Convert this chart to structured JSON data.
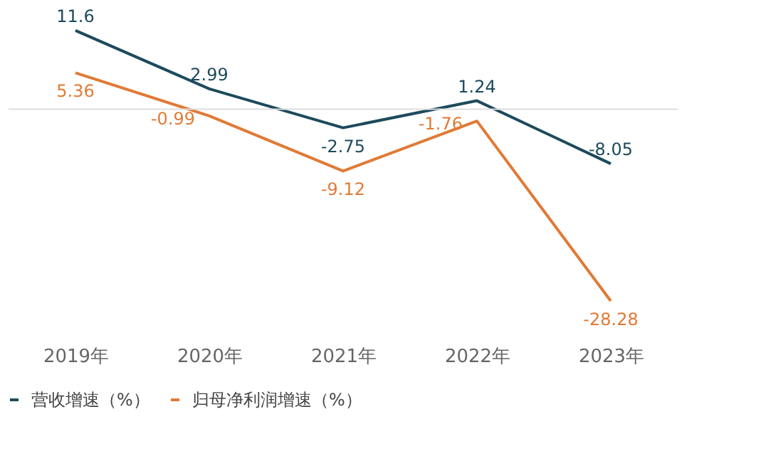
{
  "chart_data": {
    "type": "line",
    "categories": [
      "2019年",
      "2020年",
      "2021年",
      "2022年",
      "2023年"
    ],
    "series": [
      {
        "name": "营收增速（%）",
        "color": "#1d4a5c",
        "values": [
          11.6,
          2.99,
          -2.75,
          1.24,
          -8.05
        ]
      },
      {
        "name": "归母净利润增速（%）",
        "color": "#e07a36",
        "values": [
          5.36,
          -0.99,
          -9.12,
          -1.76,
          -28.28
        ]
      }
    ],
    "data_labels": true,
    "legend": "bottom",
    "marker": "none",
    "line_style": "solid"
  }
}
